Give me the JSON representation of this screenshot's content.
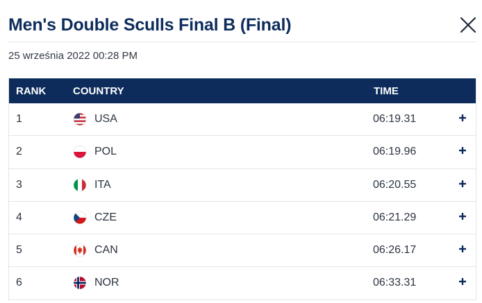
{
  "header": {
    "title": "Men's Double Sculls Final B (Final)",
    "timestamp": "25 września 2022 00:28 PM",
    "close_icon": "close-icon"
  },
  "table": {
    "columns": {
      "rank": "RANK",
      "country": "COUNTRY",
      "time": "TIME"
    },
    "rows": [
      {
        "rank": "1",
        "country": "USA",
        "time": "06:19.31",
        "flag_icon": "usa-flag-icon"
      },
      {
        "rank": "2",
        "country": "POL",
        "time": "06:19.96",
        "flag_icon": "poland-flag-icon"
      },
      {
        "rank": "3",
        "country": "ITA",
        "time": "06:20.55",
        "flag_icon": "italy-flag-icon"
      },
      {
        "rank": "4",
        "country": "CZE",
        "time": "06:21.29",
        "flag_icon": "czech-flag-icon"
      },
      {
        "rank": "5",
        "country": "CAN",
        "time": "06:26.17",
        "flag_icon": "canada-flag-icon"
      },
      {
        "rank": "6",
        "country": "NOR",
        "time": "06:33.31",
        "flag_icon": "norway-flag-icon"
      }
    ],
    "expand_icon": "plus-icon"
  },
  "colors": {
    "header_bg": "#0d2c5c",
    "title": "#0d2c5c",
    "row_border": "#e1e4e8"
  }
}
